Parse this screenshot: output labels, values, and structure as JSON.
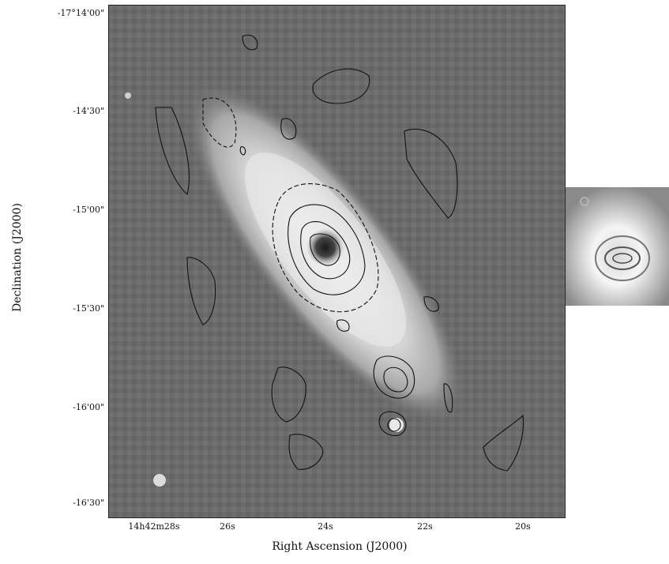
{
  "axes": {
    "xlabel": "Right Ascension (J2000)",
    "ylabel": "Declination (J2000)",
    "x_ticks": [
      "14h42m28s",
      "26s",
      "24s",
      "22s",
      "20s"
    ],
    "y_ticks": [
      "-17°14'00\"",
      "-14'30\"",
      "-15'00\"",
      "-15'30\"",
      "-16'00\"",
      "-16'30\""
    ]
  },
  "image": {
    "description_colors": {
      "background": "#6a6a6a",
      "galaxy": "#e8e8e8",
      "contour": "#111111"
    }
  }
}
